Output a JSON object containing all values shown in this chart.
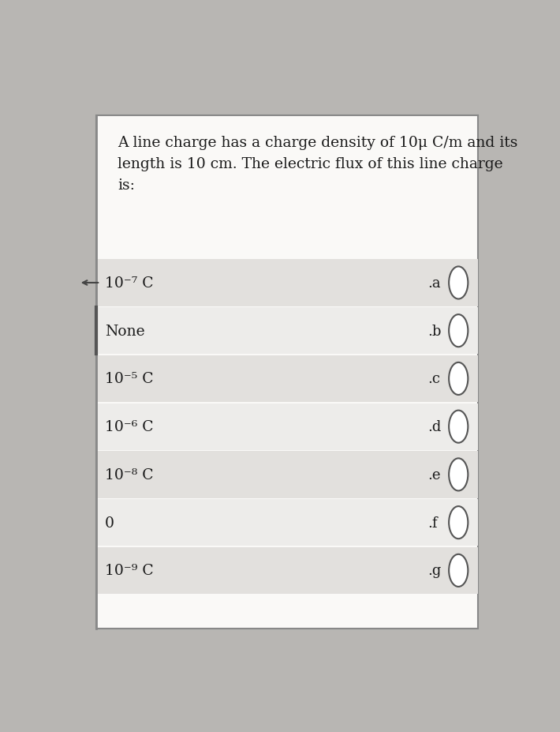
{
  "question": "A line charge has a charge density of 10μ C/m and its\nlength is 10 cm. The electric flux of this line charge\nis:",
  "options": [
    {
      "label": "10⁻⁷ C",
      "letter": "a"
    },
    {
      "label": "None",
      "letter": "b"
    },
    {
      "label": "10⁻⁵ C",
      "letter": "c"
    },
    {
      "label": "10⁻⁶ C",
      "letter": "d"
    },
    {
      "label": "10⁻⁸ C",
      "letter": "e"
    },
    {
      "label": "0",
      "letter": "f"
    },
    {
      "label": "10⁻⁹ C",
      "letter": "g"
    }
  ],
  "bg_color": "#f0eeeb",
  "box_bg": "#faf9f7",
  "row_colors": [
    "#e2e0dd",
    "#edecea"
  ],
  "text_color": "#1a1a1a",
  "border_color": "#888888",
  "outer_bg": "#b8b6b3"
}
